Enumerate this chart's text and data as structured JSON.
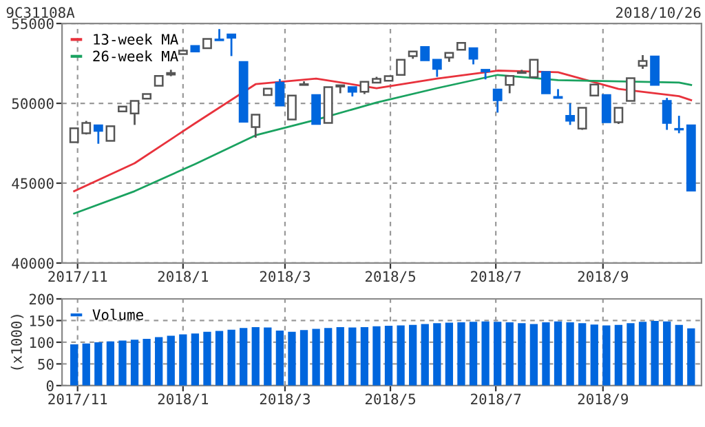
{
  "chart_data": [
    {
      "type": "candlestick",
      "title": "9C31108A",
      "subtitle": "2018/10/26",
      "x": [
        "2017-10-30",
        "2017-11-06",
        "2017-11-13",
        "2017-11-20",
        "2017-11-27",
        "2017-12-04",
        "2017-12-11",
        "2017-12-18",
        "2017-12-25",
        "2018-01-01",
        "2018-01-08",
        "2018-01-15",
        "2018-01-22",
        "2018-01-29",
        "2018-02-05",
        "2018-02-12",
        "2018-02-19",
        "2018-02-26",
        "2018-03-05",
        "2018-03-12",
        "2018-03-19",
        "2018-03-26",
        "2018-04-02",
        "2018-04-09",
        "2018-04-16",
        "2018-04-23",
        "2018-04-30",
        "2018-05-07",
        "2018-05-14",
        "2018-05-21",
        "2018-05-28",
        "2018-06-04",
        "2018-06-11",
        "2018-06-18",
        "2018-06-25",
        "2018-07-02",
        "2018-07-09",
        "2018-07-16",
        "2018-07-23",
        "2018-07-30",
        "2018-08-06",
        "2018-08-13",
        "2018-08-20",
        "2018-08-27",
        "2018-09-03",
        "2018-09-10",
        "2018-09-17",
        "2018-09-24",
        "2018-10-01",
        "2018-10-08",
        "2018-10-15",
        "2018-10-22"
      ],
      "ohlc": [
        [
          47570,
          48440,
          47570,
          48440
        ],
        [
          48130,
          48900,
          48050,
          48770
        ],
        [
          48620,
          48620,
          47470,
          48280
        ],
        [
          47650,
          48570,
          47650,
          48570
        ],
        [
          49500,
          49800,
          49500,
          49800
        ],
        [
          49370,
          50150,
          48650,
          50150
        ],
        [
          50290,
          50580,
          50290,
          50580
        ],
        [
          51100,
          51720,
          51100,
          51720
        ],
        [
          51800,
          52100,
          51700,
          51900
        ],
        [
          53080,
          53300,
          53080,
          53300
        ],
        [
          53590,
          53590,
          53250,
          53250
        ],
        [
          53450,
          54030,
          53450,
          54030
        ],
        [
          54000,
          54650,
          53950,
          53950
        ],
        [
          54310,
          54310,
          52960,
          54110
        ],
        [
          52590,
          52590,
          48850,
          48850
        ],
        [
          48510,
          49290,
          47850,
          49290
        ],
        [
          50520,
          50920,
          50520,
          50920
        ],
        [
          51300,
          51520,
          49860,
          49860
        ],
        [
          48990,
          50490,
          48990,
          50490
        ],
        [
          51150,
          51380,
          51150,
          51200
        ],
        [
          50520,
          50520,
          48710,
          48710
        ],
        [
          48770,
          51010,
          48770,
          51010
        ],
        [
          51050,
          51130,
          50630,
          51130
        ],
        [
          51010,
          51010,
          50430,
          50720
        ],
        [
          50720,
          51350,
          50580,
          51350
        ],
        [
          51300,
          51660,
          51300,
          51530
        ],
        [
          51410,
          51700,
          51410,
          51700
        ],
        [
          51780,
          52730,
          51780,
          52730
        ],
        [
          52960,
          53250,
          52790,
          53250
        ],
        [
          53530,
          53530,
          52700,
          52700
        ],
        [
          52730,
          52730,
          51660,
          52160
        ],
        [
          52870,
          53160,
          52600,
          53160
        ],
        [
          53360,
          53790,
          53360,
          53790
        ],
        [
          53450,
          53450,
          52440,
          52790
        ],
        [
          52100,
          52100,
          51500,
          52000
        ],
        [
          50860,
          50860,
          49420,
          50200
        ],
        [
          51150,
          51720,
          50630,
          51720
        ],
        [
          51900,
          52100,
          51900,
          51950
        ],
        [
          51640,
          52730,
          51640,
          52730
        ],
        [
          51960,
          51960,
          50630,
          50630
        ],
        [
          50400,
          50890,
          50340,
          50340
        ],
        [
          49220,
          50000,
          48650,
          48910
        ],
        [
          48420,
          49720,
          48340,
          49720
        ],
        [
          50490,
          51180,
          50490,
          51180
        ],
        [
          50520,
          50520,
          48820,
          48820
        ],
        [
          48820,
          49720,
          48710,
          49720
        ],
        [
          50150,
          51580,
          50150,
          51580
        ],
        [
          52350,
          53020,
          52160,
          52650
        ],
        [
          52930,
          52930,
          51150,
          51150
        ],
        [
          50150,
          50340,
          48340,
          48770
        ],
        [
          48400,
          49220,
          48130,
          48360
        ],
        [
          48620,
          48620,
          44540,
          44540
        ]
      ],
      "series": [
        {
          "name": "13-week MA",
          "type": "line",
          "color": "#e8323c",
          "x": [
            "2017-10-30",
            "2017-12-04",
            "2018-01-08",
            "2018-02-12",
            "2018-03-19",
            "2018-04-23",
            "2018-05-28",
            "2018-07-02",
            "2018-08-06",
            "2018-09-10",
            "2018-10-15",
            "2018-10-22"
          ],
          "values": [
            44500,
            46250,
            48750,
            51200,
            51550,
            50950,
            51550,
            52050,
            51950,
            50900,
            50450,
            50200
          ]
        },
        {
          "name": "26-week MA",
          "type": "line",
          "color": "#1aa260",
          "x": [
            "2017-10-30",
            "2017-12-04",
            "2018-01-08",
            "2018-02-12",
            "2018-03-19",
            "2018-04-23",
            "2018-05-28",
            "2018-07-02",
            "2018-08-06",
            "2018-09-10",
            "2018-10-15",
            "2018-10-22"
          ],
          "values": [
            43100,
            44500,
            46200,
            48000,
            48970,
            50050,
            50950,
            51780,
            51450,
            51380,
            51300,
            51150
          ]
        }
      ],
      "xlim": [
        "2017-10-23",
        "2018-10-28"
      ],
      "xticks": [
        {
          "value": "2017-11-01",
          "label": "2017/11"
        },
        {
          "value": "2018-01-01",
          "label": "2018/1"
        },
        {
          "value": "2018-03-01",
          "label": "2018/3"
        },
        {
          "value": "2018-05-01",
          "label": "2018/5"
        },
        {
          "value": "2018-07-01",
          "label": "2018/7"
        },
        {
          "value": "2018-09-01",
          "label": "2018/9"
        }
      ],
      "ylim": [
        40000,
        55000
      ],
      "yticks": [
        40000,
        45000,
        50000,
        55000
      ],
      "grid": true,
      "legend": "top left"
    },
    {
      "type": "bar",
      "ylabel": "(x1000)",
      "x": [
        "2017-10-30",
        "2017-11-06",
        "2017-11-13",
        "2017-11-20",
        "2017-11-27",
        "2017-12-04",
        "2017-12-11",
        "2017-12-18",
        "2017-12-25",
        "2018-01-01",
        "2018-01-08",
        "2018-01-15",
        "2018-01-22",
        "2018-01-29",
        "2018-02-05",
        "2018-02-12",
        "2018-02-19",
        "2018-02-26",
        "2018-03-05",
        "2018-03-12",
        "2018-03-19",
        "2018-03-26",
        "2018-04-02",
        "2018-04-09",
        "2018-04-16",
        "2018-04-23",
        "2018-04-30",
        "2018-05-07",
        "2018-05-14",
        "2018-05-21",
        "2018-05-28",
        "2018-06-04",
        "2018-06-11",
        "2018-06-18",
        "2018-06-25",
        "2018-07-02",
        "2018-07-09",
        "2018-07-16",
        "2018-07-23",
        "2018-07-30",
        "2018-08-06",
        "2018-08-13",
        "2018-08-20",
        "2018-08-27",
        "2018-09-03",
        "2018-09-10",
        "2018-09-17",
        "2018-09-24",
        "2018-10-01",
        "2018-10-08",
        "2018-10-15",
        "2018-10-22"
      ],
      "series": [
        {
          "name": "Volume",
          "color": "#0066dd",
          "values": [
            95,
            97,
            100,
            102,
            104,
            106,
            108,
            112,
            115,
            118,
            120,
            124,
            126,
            129,
            133,
            135,
            134,
            127,
            124,
            128,
            131,
            133,
            135,
            134,
            135,
            137,
            138,
            139,
            140,
            142,
            144,
            145,
            146,
            147,
            148,
            147,
            146,
            144,
            142,
            146,
            148,
            146,
            144,
            141,
            139,
            140,
            144,
            147,
            149,
            148,
            140,
            132
          ]
        }
      ],
      "xlim": [
        "2017-10-23",
        "2018-10-28"
      ],
      "xticks": [
        {
          "value": "2017-11-01",
          "label": "2017/11"
        },
        {
          "value": "2018-01-01",
          "label": "2018/1"
        },
        {
          "value": "2018-03-01",
          "label": "2018/3"
        },
        {
          "value": "2018-05-01",
          "label": "2018/5"
        },
        {
          "value": "2018-07-01",
          "label": "2018/7"
        },
        {
          "value": "2018-09-01",
          "label": "2018/9"
        }
      ],
      "ylim": [
        0,
        200
      ],
      "yticks": [
        0,
        50,
        100,
        150,
        200
      ],
      "grid": true,
      "legend": "top left"
    }
  ]
}
